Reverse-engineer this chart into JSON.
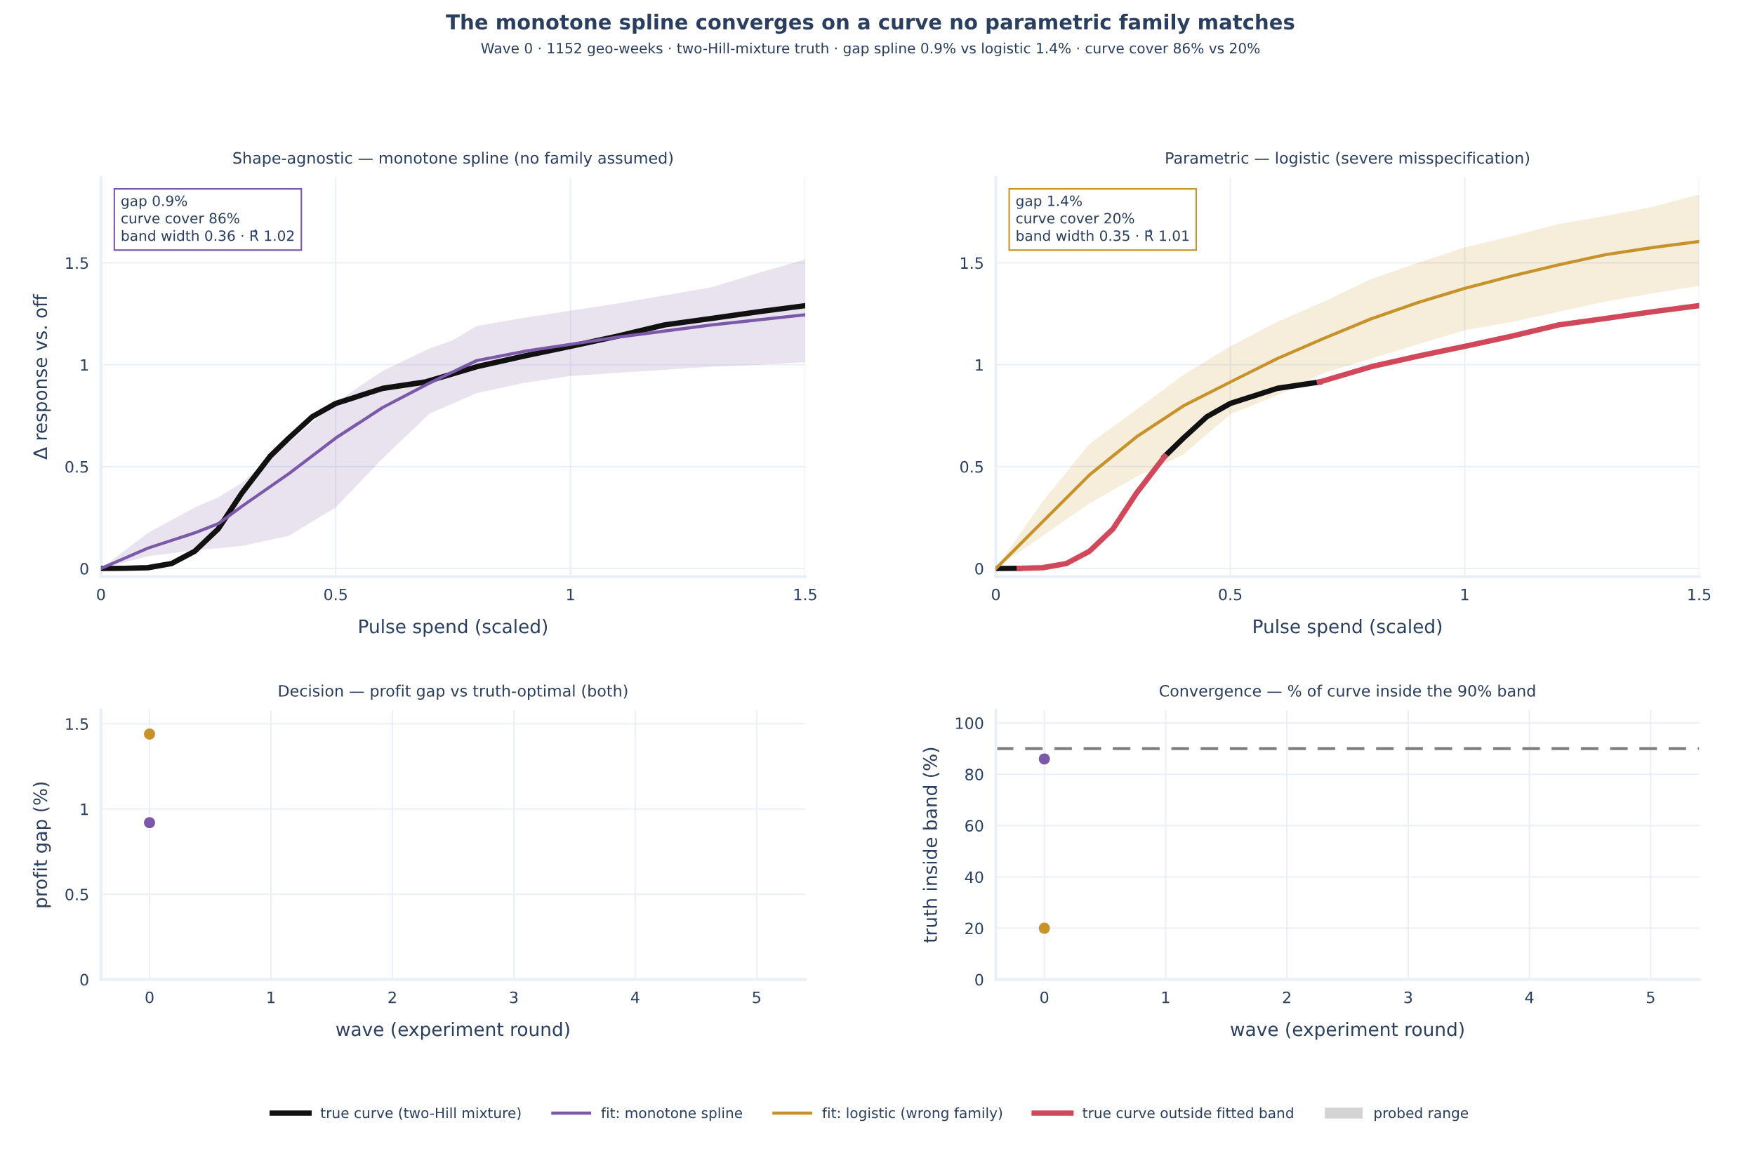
{
  "chart_data": [
    {
      "type": "line",
      "title": "Shape-agnostic — monotone spline (no family assumed)",
      "xlabel": "Pulse spend (scaled)",
      "ylabel": "Δ response vs. off",
      "xlim": [
        0,
        1.5
      ],
      "xticks": [
        0,
        0.5,
        1,
        1.5
      ],
      "ylim": [
        -0.04,
        1.92
      ],
      "yticks": [
        0,
        0.5,
        1,
        1.5
      ],
      "grid": true,
      "legend": "bottom",
      "marker": "none",
      "line_style": "solid",
      "annotations": [
        "gap 0.9%\ncurve cover 86%\nband width 0.36 · R̂ 1.02",
        "The monotone spline converges on a curve no parametric family matches",
        "Wave 0 · 1152 geo-weeks · two-Hill-mixture truth · gap spline 0.9% vs logistic 1.4% · curve cover 86% vs 20%"
      ],
      "series": [
        {
          "name": "true curve (two-Hill mixture)",
          "color": "#111111",
          "x": [
            0,
            0.05,
            0.1,
            0.15,
            0.2,
            0.25,
            0.3,
            0.36,
            0.4,
            0.45,
            0.5,
            0.6,
            0.69,
            0.8,
            0.9,
            1.0,
            1.1,
            1.2,
            1.3,
            1.4,
            1.5
          ],
          "values": [
            0,
            0.001,
            0.004,
            0.024,
            0.085,
            0.195,
            0.37,
            0.55,
            0.64,
            0.745,
            0.81,
            0.884,
            0.915,
            0.99,
            1.042,
            1.09,
            1.14,
            1.195,
            1.227,
            1.26,
            1.29
          ]
        },
        {
          "name": "fit: monotone spline",
          "color": "#7b59a8",
          "x": [
            0,
            0.1,
            0.2,
            0.25,
            0.3,
            0.4,
            0.5,
            0.6,
            0.7,
            0.75,
            0.8,
            0.9,
            1.0,
            1.1,
            1.2,
            1.3,
            1.4,
            1.5
          ],
          "values": [
            0,
            0.1,
            0.175,
            0.22,
            0.305,
            0.465,
            0.64,
            0.79,
            0.91,
            0.965,
            1.02,
            1.065,
            1.1,
            1.135,
            1.165,
            1.195,
            1.22,
            1.245
          ],
          "lower": [
            0,
            0.06,
            0.09,
            0.1,
            0.11,
            0.16,
            0.3,
            0.54,
            0.76,
            0.81,
            0.86,
            0.91,
            0.945,
            0.96,
            0.975,
            0.99,
            1.0,
            1.012
          ],
          "upper": [
            0,
            0.175,
            0.3,
            0.35,
            0.42,
            0.62,
            0.815,
            0.97,
            1.08,
            1.12,
            1.19,
            1.23,
            1.265,
            1.3,
            1.34,
            1.38,
            1.45,
            1.516
          ]
        }
      ]
    },
    {
      "type": "line",
      "title": "Parametric — logistic (severe misspecification)",
      "xlabel": "Pulse spend (scaled)",
      "xlim": [
        0,
        1.5
      ],
      "xticks": [
        0,
        0.5,
        1,
        1.5
      ],
      "ylim": [
        -0.04,
        1.92
      ],
      "yticks": [
        0,
        0.5,
        1,
        1.5
      ],
      "grid": true,
      "legend": "bottom",
      "marker": "none",
      "line_style": "solid",
      "annotations": [
        "gap 1.4%\ncurve cover 20%\nband width 0.35 · R̂ 1.01"
      ],
      "series": [
        {
          "name": "true curve (two-Hill mixture)",
          "color": "#111111",
          "x": [
            0,
            0.05,
            0.1,
            0.36,
            0.4,
            0.45,
            0.5,
            0.6,
            0.69
          ],
          "values": [
            0,
            0.001,
            null,
            0.55,
            0.64,
            0.745,
            0.81,
            0.884,
            0.915
          ]
        },
        {
          "name": "fit: logistic (wrong family)",
          "color": "#c8922a",
          "x": [
            0,
            0.1,
            0.2,
            0.3,
            0.4,
            0.5,
            0.6,
            0.7,
            0.8,
            0.9,
            1.0,
            1.1,
            1.2,
            1.3,
            1.4,
            1.5
          ],
          "values": [
            0,
            0.23,
            0.46,
            0.646,
            0.798,
            0.915,
            1.03,
            1.13,
            1.225,
            1.305,
            1.375,
            1.435,
            1.49,
            1.54,
            1.575,
            1.605
          ],
          "lower": [
            0,
            0.16,
            0.32,
            0.45,
            0.56,
            0.757,
            0.85,
            0.96,
            1.03,
            1.1,
            1.169,
            1.21,
            1.26,
            1.31,
            1.35,
            1.387
          ],
          "upper": [
            0,
            0.33,
            0.612,
            0.78,
            0.95,
            1.09,
            1.21,
            1.31,
            1.42,
            1.5,
            1.576,
            1.63,
            1.69,
            1.73,
            1.775,
            1.835
          ]
        },
        {
          "name": "true curve outside fitted band",
          "color": "#d0485a",
          "x": [
            0.05,
            0.1,
            0.15,
            0.2,
            0.25,
            0.3,
            0.36,
            0.4,
            0.45,
            0.5,
            0.6,
            0.69,
            0.8,
            0.9,
            1.0,
            1.1,
            1.2,
            1.3,
            1.4,
            1.5
          ],
          "values": [
            0.001,
            0.004,
            0.024,
            0.085,
            0.195,
            0.37,
            0.55,
            null,
            null,
            null,
            null,
            0.915,
            0.99,
            1.042,
            1.09,
            1.14,
            1.195,
            1.227,
            1.26,
            1.29
          ]
        },
        {
          "name": "probed range",
          "color": "#d3d3d3",
          "type": "area"
        }
      ]
    },
    {
      "type": "scatter",
      "title": "Decision — profit gap vs truth-optimal (both)",
      "xlabel": "wave (experiment round)",
      "ylabel": "profit gap (%)",
      "xlim": [
        -0.4,
        5.4
      ],
      "xticks": [
        0,
        1,
        2,
        3,
        4,
        5
      ],
      "ylim": [
        0,
        1.58
      ],
      "yticks": [
        0,
        0.5,
        1,
        1.5
      ],
      "grid": true,
      "marker": "circle",
      "series": [
        {
          "color": "#7b59a8",
          "x": [
            0
          ],
          "values": [
            0.92
          ]
        },
        {
          "color": "#c8922a",
          "x": [
            0
          ],
          "values": [
            1.44
          ]
        }
      ]
    },
    {
      "type": "scatter",
      "title": "Convergence — % of curve inside the 90% band",
      "xlabel": "wave (experiment round)",
      "ylabel": "truth inside band (%)",
      "xlim": [
        -0.4,
        5.4
      ],
      "xticks": [
        0,
        1,
        2,
        3,
        4,
        5
      ],
      "ylim": [
        0,
        105
      ],
      "yticks": [
        0,
        20,
        40,
        60,
        80,
        100
      ],
      "grid": true,
      "marker": "circle",
      "ref_lines": [
        {
          "axis": "y",
          "value": 90,
          "color": "#808080",
          "line_style": "dashed"
        }
      ],
      "series": [
        {
          "color": "#7b59a8",
          "x": [
            0
          ],
          "values": [
            86
          ]
        },
        {
          "color": "#c8922a",
          "x": [
            0
          ],
          "values": [
            20
          ]
        }
      ]
    }
  ]
}
